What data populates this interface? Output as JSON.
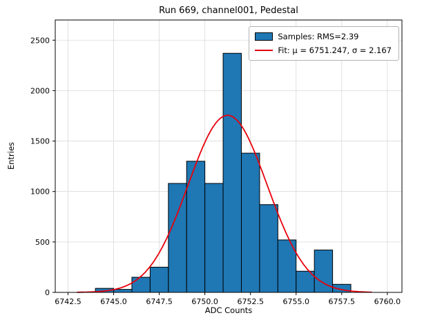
{
  "chart_data": {
    "type": "bar",
    "title": "Run 669, channel001, Pedestal",
    "xlabel": "ADC Counts",
    "ylabel": "Entries",
    "xlim": [
      6741.8,
      6760.8
    ],
    "ylim": [
      0,
      2700
    ],
    "grid": true,
    "grid_color": "#d9d9d9",
    "bar_color": "#1f77b4",
    "bar_edge_color": "#000000",
    "xticks": [
      {
        "v": 6742.5,
        "label": "6742.5"
      },
      {
        "v": 6745.0,
        "label": "6745.0"
      },
      {
        "v": 6747.5,
        "label": "6747.5"
      },
      {
        "v": 6750.0,
        "label": "6750.0"
      },
      {
        "v": 6752.5,
        "label": "6752.5"
      },
      {
        "v": 6755.0,
        "label": "6755.0"
      },
      {
        "v": 6757.5,
        "label": "6757.5"
      },
      {
        "v": 6760.0,
        "label": "6760.0"
      }
    ],
    "yticks": [
      {
        "v": 0,
        "label": "0"
      },
      {
        "v": 500,
        "label": "500"
      },
      {
        "v": 1000,
        "label": "1000"
      },
      {
        "v": 1500,
        "label": "1500"
      },
      {
        "v": 2000,
        "label": "2000"
      },
      {
        "v": 2500,
        "label": "2500"
      }
    ],
    "bins": {
      "width": 1,
      "left_edges": [
        6744,
        6745,
        6746,
        6747,
        6748,
        6749,
        6750,
        6751,
        6752,
        6753,
        6754,
        6755,
        6756,
        6757
      ],
      "counts": [
        40,
        30,
        150,
        250,
        1080,
        1300,
        1080,
        2370,
        1380,
        870,
        520,
        210,
        420,
        80
      ]
    },
    "fit": {
      "mu": 6751.247,
      "sigma": 2.167,
      "amplitude": 1755,
      "color": "#e8000b",
      "x_range": [
        6743.0,
        6759.2
      ]
    },
    "legend": [
      {
        "type": "patch",
        "label": "Samples: RMS=2.39"
      },
      {
        "type": "line",
        "label": "Fit: μ = 6751.247, σ = 2.167"
      }
    ]
  }
}
